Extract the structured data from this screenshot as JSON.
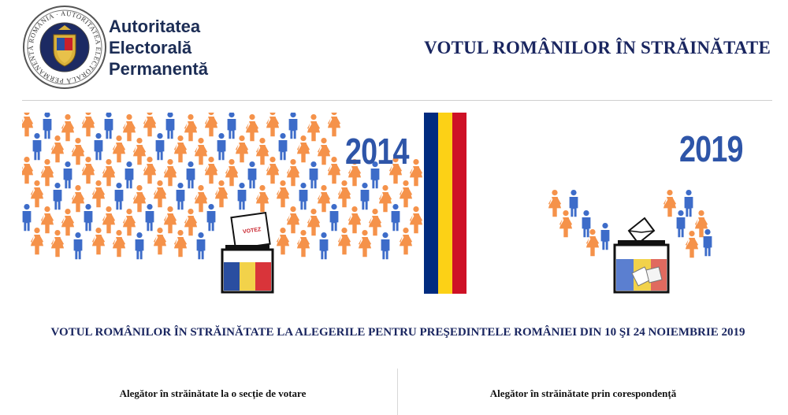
{
  "header": {
    "seal_text": "ROMÂNIA · AUTORITATEA ELECTORALĂ PERMANENTĂ",
    "org_name": [
      "Autoritatea",
      "Electorală",
      "Permanentă"
    ],
    "title": "VOTUL ROMÂNILOR ÎN STRĂINĂTATE"
  },
  "banner": {
    "year_left": "2014",
    "year_right": "2019",
    "ballot_label": "VOTEZ",
    "flag_colors": [
      "#002b7f",
      "#fcd116",
      "#ce1126"
    ],
    "figure_colors": {
      "female": "#f5924a",
      "male": "#3d6cc9"
    }
  },
  "subtitle": "VOTUL ROMÂNILOR ÎN STRĂINĂTATE LA ALEGERILE PENTRU PREŞEDINTELE ROMÂNIEI DIN 10 ŞI 24 NOIEMBRIE 2019",
  "sections": [
    {
      "label": "Alegător în străinătate la o secție de votare"
    },
    {
      "label": "Alegător în străinătate prin corespondență"
    }
  ]
}
